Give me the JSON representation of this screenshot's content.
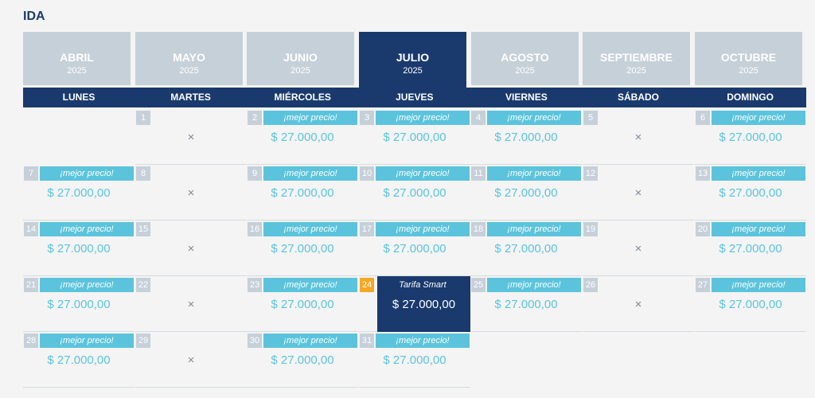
{
  "title": "IDA",
  "months": [
    {
      "name": "ABRIL",
      "year": "2025",
      "active": false
    },
    {
      "name": "MAYO",
      "year": "2025",
      "active": false
    },
    {
      "name": "JUNIO",
      "year": "2025",
      "active": false
    },
    {
      "name": "JULIO",
      "year": "2025",
      "active": true
    },
    {
      "name": "AGOSTO",
      "year": "2025",
      "active": false
    },
    {
      "name": "SEPTIEMBRE",
      "year": "2025",
      "active": false
    },
    {
      "name": "OCTUBRE",
      "year": "2025",
      "active": false
    }
  ],
  "weekdays": [
    "LUNES",
    "MARTES",
    "MIÉRCOLES",
    "JUEVES",
    "VIERNES",
    "SÁBADO",
    "DOMINGO"
  ],
  "unavailable_symbol": "×",
  "days": [
    {
      "day": "1",
      "available": false
    },
    {
      "day": "2",
      "available": true,
      "badge": "¡mejor precio!",
      "price": "$ 27.000,00"
    },
    {
      "day": "3",
      "available": true,
      "badge": "¡mejor precio!",
      "price": "$ 27.000,00"
    },
    {
      "day": "4",
      "available": true,
      "badge": "¡mejor precio!",
      "price": "$ 27.000,00"
    },
    {
      "day": "5",
      "available": false
    },
    {
      "day": "6",
      "available": true,
      "badge": "¡mejor precio!",
      "price": "$ 27.000,00"
    },
    {
      "day": "7",
      "available": true,
      "badge": "¡mejor precio!",
      "price": "$ 27.000,00"
    },
    {
      "day": "8",
      "available": false
    },
    {
      "day": "9",
      "available": true,
      "badge": "¡mejor precio!",
      "price": "$ 27.000,00"
    },
    {
      "day": "10",
      "available": true,
      "badge": "¡mejor precio!",
      "price": "$ 27.000,00"
    },
    {
      "day": "11",
      "available": true,
      "badge": "¡mejor precio!",
      "price": "$ 27.000,00"
    },
    {
      "day": "12",
      "available": false
    },
    {
      "day": "13",
      "available": true,
      "badge": "¡mejor precio!",
      "price": "$ 27.000,00"
    },
    {
      "day": "14",
      "available": true,
      "badge": "¡mejor precio!",
      "price": "$ 27.000,00"
    },
    {
      "day": "15",
      "available": false
    },
    {
      "day": "16",
      "available": true,
      "badge": "¡mejor precio!",
      "price": "$ 27.000,00"
    },
    {
      "day": "17",
      "available": true,
      "badge": "¡mejor precio!",
      "price": "$ 27.000,00"
    },
    {
      "day": "18",
      "available": true,
      "badge": "¡mejor precio!",
      "price": "$ 27.000,00"
    },
    {
      "day": "19",
      "available": false
    },
    {
      "day": "20",
      "available": true,
      "badge": "¡mejor precio!",
      "price": "$ 27.000,00"
    },
    {
      "day": "21",
      "available": true,
      "badge": "¡mejor precio!",
      "price": "$ 27.000,00"
    },
    {
      "day": "22",
      "available": false
    },
    {
      "day": "23",
      "available": true,
      "badge": "¡mejor precio!",
      "price": "$ 27.000,00"
    },
    {
      "day": "24",
      "available": true,
      "selected": true,
      "badge": "Tarifa Smart",
      "price": "$ 27.000,00"
    },
    {
      "day": "25",
      "available": true,
      "badge": "¡mejor precio!",
      "price": "$ 27.000,00"
    },
    {
      "day": "26",
      "available": false
    },
    {
      "day": "27",
      "available": true,
      "badge": "¡mejor precio!",
      "price": "$ 27.000,00"
    },
    {
      "day": "28",
      "available": true,
      "badge": "¡mejor precio!",
      "price": "$ 27.000,00"
    },
    {
      "day": "29",
      "available": false
    },
    {
      "day": "30",
      "available": true,
      "badge": "¡mejor precio!",
      "price": "$ 27.000,00"
    },
    {
      "day": "31",
      "available": true,
      "badge": "¡mejor precio!",
      "price": "$ 27.000,00"
    }
  ]
}
